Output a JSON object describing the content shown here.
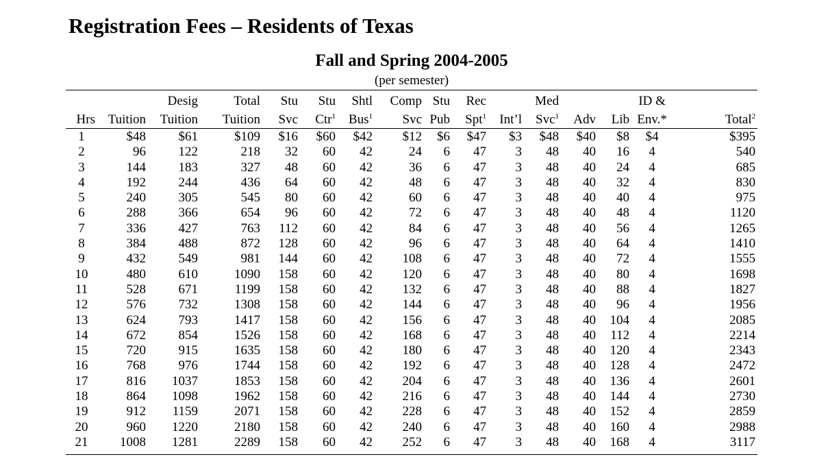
{
  "title": "Registration Fees – Residents of Texas",
  "subtitle": "Fall and Spring 2004-2005",
  "note": "(per semester)",
  "header_top": [
    "",
    "",
    "Desig",
    "Total",
    "Stu",
    "Stu",
    "Shtl",
    "Comp",
    "Stu",
    "Rec",
    "",
    "Med",
    "",
    "",
    "ID &",
    ""
  ],
  "header_bottom": [
    "Hrs",
    "Tuition",
    "Tuition",
    "Tuition",
    "Svc",
    "Ctr",
    "Bus",
    "Svc",
    "Pub",
    "Spt",
    "Int’l",
    "Svc",
    "Adv",
    "Lib",
    "Env.*",
    "Total"
  ],
  "header_sup": [
    "",
    "",
    "",
    "",
    "",
    "1",
    "1",
    "",
    "",
    "1",
    "",
    "1",
    "",
    "",
    "",
    "2"
  ],
  "rows": [
    [
      "1",
      "$48",
      "$61",
      "$109",
      "$16",
      "$60",
      "$42",
      "$12",
      "$6",
      "$47",
      "$3",
      "$48",
      "$40",
      "$8",
      "$4",
      "$395"
    ],
    [
      "2",
      "96",
      "122",
      "218",
      "32",
      "60",
      "42",
      "24",
      "6",
      "47",
      "3",
      "48",
      "40",
      "16",
      "4",
      "540"
    ],
    [
      "3",
      "144",
      "183",
      "327",
      "48",
      "60",
      "42",
      "36",
      "6",
      "47",
      "3",
      "48",
      "40",
      "24",
      "4",
      "685"
    ],
    [
      "4",
      "192",
      "244",
      "436",
      "64",
      "60",
      "42",
      "48",
      "6",
      "47",
      "3",
      "48",
      "40",
      "32",
      "4",
      "830"
    ],
    [
      "5",
      "240",
      "305",
      "545",
      "80",
      "60",
      "42",
      "60",
      "6",
      "47",
      "3",
      "48",
      "40",
      "40",
      "4",
      "975"
    ],
    [
      "6",
      "288",
      "366",
      "654",
      "96",
      "60",
      "42",
      "72",
      "6",
      "47",
      "3",
      "48",
      "40",
      "48",
      "4",
      "1120"
    ],
    [
      "7",
      "336",
      "427",
      "763",
      "112",
      "60",
      "42",
      "84",
      "6",
      "47",
      "3",
      "48",
      "40",
      "56",
      "4",
      "1265"
    ],
    [
      "8",
      "384",
      "488",
      "872",
      "128",
      "60",
      "42",
      "96",
      "6",
      "47",
      "3",
      "48",
      "40",
      "64",
      "4",
      "1410"
    ],
    [
      "9",
      "432",
      "549",
      "981",
      "144",
      "60",
      "42",
      "108",
      "6",
      "47",
      "3",
      "48",
      "40",
      "72",
      "4",
      "1555"
    ],
    [
      "10",
      "480",
      "610",
      "1090",
      "158",
      "60",
      "42",
      "120",
      "6",
      "47",
      "3",
      "48",
      "40",
      "80",
      "4",
      "1698"
    ],
    [
      "11",
      "528",
      "671",
      "1199",
      "158",
      "60",
      "42",
      "132",
      "6",
      "47",
      "3",
      "48",
      "40",
      "88",
      "4",
      "1827"
    ],
    [
      "12",
      "576",
      "732",
      "1308",
      "158",
      "60",
      "42",
      "144",
      "6",
      "47",
      "3",
      "48",
      "40",
      "96",
      "4",
      "1956"
    ],
    [
      "13",
      "624",
      "793",
      "1417",
      "158",
      "60",
      "42",
      "156",
      "6",
      "47",
      "3",
      "48",
      "40",
      "104",
      "4",
      "2085"
    ],
    [
      "14",
      "672",
      "854",
      "1526",
      "158",
      "60",
      "42",
      "168",
      "6",
      "47",
      "3",
      "48",
      "40",
      "112",
      "4",
      "2214"
    ],
    [
      "15",
      "720",
      "915",
      "1635",
      "158",
      "60",
      "42",
      "180",
      "6",
      "47",
      "3",
      "48",
      "40",
      "120",
      "4",
      "2343"
    ],
    [
      "16",
      "768",
      "976",
      "1744",
      "158",
      "60",
      "42",
      "192",
      "6",
      "47",
      "3",
      "48",
      "40",
      "128",
      "4",
      "2472"
    ],
    [
      "17",
      "816",
      "1037",
      "1853",
      "158",
      "60",
      "42",
      "204",
      "6",
      "47",
      "3",
      "48",
      "40",
      "136",
      "4",
      "2601"
    ],
    [
      "18",
      "864",
      "1098",
      "1962",
      "158",
      "60",
      "42",
      "216",
      "6",
      "47",
      "3",
      "48",
      "40",
      "144",
      "4",
      "2730"
    ],
    [
      "19",
      "912",
      "1159",
      "2071",
      "158",
      "60",
      "42",
      "228",
      "6",
      "47",
      "3",
      "48",
      "40",
      "152",
      "4",
      "2859"
    ],
    [
      "20",
      "960",
      "1220",
      "2180",
      "158",
      "60",
      "42",
      "240",
      "6",
      "47",
      "3",
      "48",
      "40",
      "160",
      "4",
      "2988"
    ],
    [
      "21",
      "1008",
      "1281",
      "2289",
      "158",
      "60",
      "42",
      "252",
      "6",
      "47",
      "3",
      "48",
      "40",
      "168",
      "4",
      "3117"
    ]
  ]
}
